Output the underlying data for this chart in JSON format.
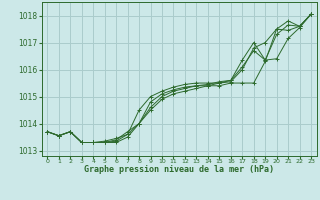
{
  "bg_color": "#cce8e8",
  "grid_color": "#aacccc",
  "line_color": "#2d6a2d",
  "xlabel": "Graphe pression niveau de la mer (hPa)",
  "xlim": [
    -0.5,
    23.5
  ],
  "ylim": [
    1012.8,
    1018.5
  ],
  "yticks": [
    1013,
    1014,
    1015,
    1016,
    1017,
    1018
  ],
  "xticks": [
    0,
    1,
    2,
    3,
    4,
    5,
    6,
    7,
    8,
    9,
    10,
    11,
    12,
    13,
    14,
    15,
    16,
    17,
    18,
    19,
    20,
    21,
    22,
    23
  ],
  "series": [
    [
      1013.7,
      1013.55,
      1013.7,
      1013.3,
      1013.3,
      1013.3,
      1013.3,
      1013.5,
      1014.0,
      1014.8,
      1015.1,
      1015.25,
      1015.35,
      1015.4,
      1015.4,
      1015.4,
      1015.5,
      1015.5,
      1015.5,
      1016.3,
      1017.5,
      1017.8,
      1017.6,
      1018.05
    ],
    [
      1013.7,
      1013.55,
      1013.7,
      1013.3,
      1013.3,
      1013.3,
      1013.35,
      1013.6,
      1014.5,
      1015.0,
      1015.2,
      1015.35,
      1015.45,
      1015.5,
      1015.5,
      1015.5,
      1015.55,
      1016.0,
      1016.8,
      1017.0,
      1017.5,
      1017.45,
      1017.6,
      1018.05
    ],
    [
      1013.7,
      1013.55,
      1013.7,
      1013.3,
      1013.3,
      1013.3,
      1013.4,
      1013.7,
      1014.0,
      1014.6,
      1015.0,
      1015.2,
      1015.3,
      1015.4,
      1015.45,
      1015.55,
      1015.6,
      1016.35,
      1017.0,
      1016.35,
      1017.3,
      1017.65,
      1017.6,
      1018.05
    ],
    [
      1013.7,
      1013.55,
      1013.7,
      1013.3,
      1013.3,
      1013.35,
      1013.45,
      1013.6,
      1014.0,
      1014.5,
      1014.9,
      1015.1,
      1015.2,
      1015.3,
      1015.4,
      1015.5,
      1015.6,
      1016.1,
      1016.7,
      1016.35,
      1016.4,
      1017.15,
      1017.55,
      1018.05
    ]
  ]
}
